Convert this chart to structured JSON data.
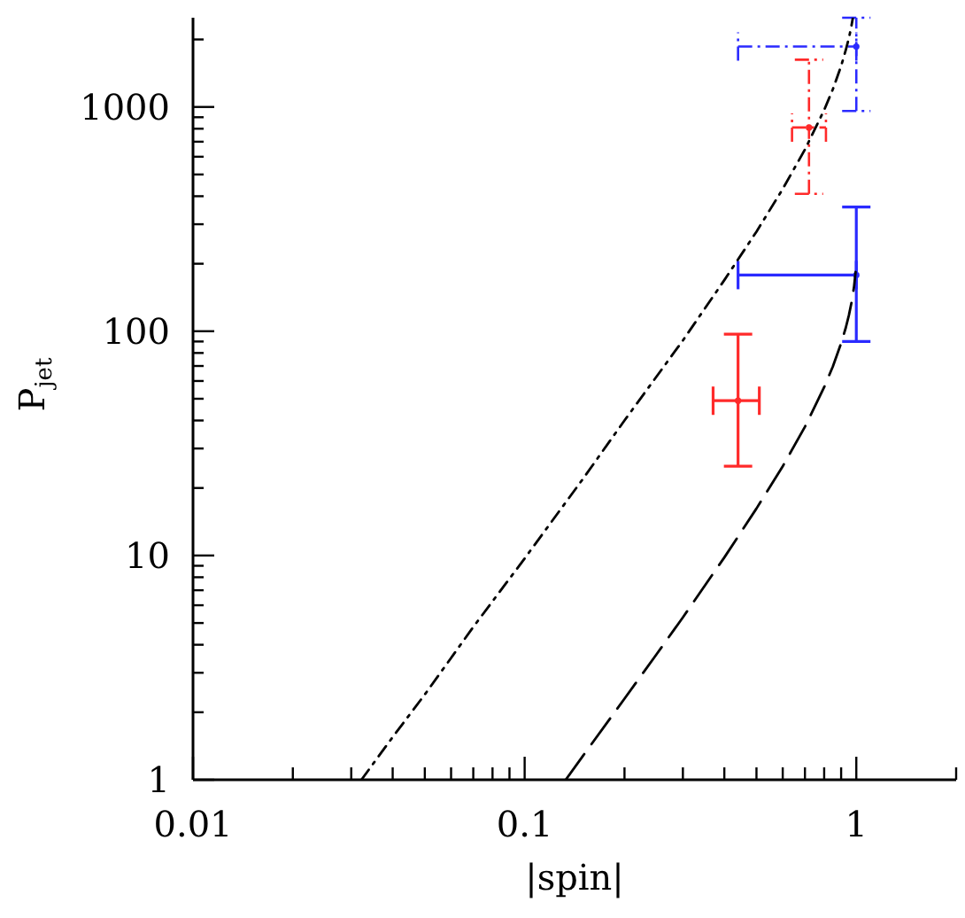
{
  "chart_data": {
    "type": "line",
    "xlabel": "|spin|",
    "ylabel": "P$_{jet}$",
    "log": "xy",
    "xlim": [
      0.01,
      2
    ],
    "ylim": [
      1,
      2500
    ],
    "xticks": [
      0.01,
      {
        "value": 0.02,
        "label": null
      },
      {
        "value": 0.03,
        "label": null
      },
      {
        "value": 0.04,
        "label": null
      },
      {
        "value": 0.05,
        "label": null
      },
      {
        "value": 0.06,
        "label": null
      },
      {
        "value": 0.07,
        "label": null
      },
      {
        "value": 0.08,
        "label": null
      },
      {
        "value": 0.09,
        "label": null
      },
      0.1,
      {
        "value": 0.2,
        "label": null
      },
      {
        "value": 0.3,
        "label": null
      },
      {
        "value": 0.4,
        "label": null
      },
      {
        "value": 0.5,
        "label": null
      },
      {
        "value": 0.6,
        "label": null
      },
      {
        "value": 0.7,
        "label": null
      },
      {
        "value": 0.8,
        "label": null
      },
      {
        "value": 0.9,
        "label": null
      },
      1,
      {
        "value": 2,
        "label": null
      }
    ],
    "yticks": [
      1,
      {
        "value": 2,
        "label": null
      },
      {
        "value": 3,
        "label": null
      },
      {
        "value": 4,
        "label": null
      },
      {
        "value": 5,
        "label": null
      },
      {
        "value": 6,
        "label": null
      },
      {
        "value": 7,
        "label": null
      },
      {
        "value": 8,
        "label": null
      },
      {
        "value": 9,
        "label": null
      },
      10,
      {
        "value": 20,
        "label": null
      },
      {
        "value": 30,
        "label": null
      },
      {
        "value": 40,
        "label": null
      },
      {
        "value": 50,
        "label": null
      },
      {
        "value": 60,
        "label": null
      },
      {
        "value": 70,
        "label": null
      },
      {
        "value": 80,
        "label": null
      },
      {
        "value": 90,
        "label": null
      },
      100,
      {
        "value": 200,
        "label": null
      },
      {
        "value": 300,
        "label": null
      },
      {
        "value": 400,
        "label": null
      },
      {
        "value": 500,
        "label": null
      },
      {
        "value": 600,
        "label": null
      },
      {
        "value": 700,
        "label": null
      },
      {
        "value": 800,
        "label": null
      },
      {
        "value": 900,
        "label": null
      },
      1000,
      {
        "value": 2000,
        "label": null
      }
    ],
    "series": [
      {
        "type": "line",
        "color": "#000000",
        "line_style": "dashdot",
        "x": [
          0.0322,
          0.04,
          0.05,
          0.07,
          0.1,
          0.15,
          0.2,
          0.3,
          0.4,
          0.5,
          0.6,
          0.7,
          0.8,
          0.85,
          0.9,
          0.93,
          0.95,
          0.965,
          0.976
        ],
        "values": [
          1.0,
          1.55,
          2.4,
          4.8,
          9.7,
          22,
          40,
          91,
          169,
          278,
          431,
          646,
          969,
          1201,
          1522,
          1798,
          2031,
          2265,
          2489
        ]
      },
      {
        "type": "line",
        "color": "#000000",
        "line_style": "dashed",
        "x": [
          0.133,
          0.15,
          0.2,
          0.25,
          0.3,
          0.4,
          0.5,
          0.6,
          0.7,
          0.8,
          0.85,
          0.9,
          0.93,
          0.95,
          0.97,
          0.985,
          0.995
        ],
        "values": [
          1.0,
          1.28,
          2.3,
          3.63,
          5.3,
          9.8,
          16.2,
          25,
          37.5,
          56.3,
          69.7,
          88.4,
          104,
          118,
          137,
          159,
          184
        ]
      },
      {
        "type": "scatter",
        "color": "#ff2a2a",
        "line_style": "solid",
        "x": [
          0.44
        ],
        "values": [
          49
        ],
        "errors": [
          [
            25,
            97
          ]
        ],
        "xerrors": [
          [
            0.37,
            0.51
          ]
        ]
      },
      {
        "type": "scatter",
        "color": "#ff2a2a",
        "line_style": "dashdot",
        "x": [
          0.72
        ],
        "values": [
          810
        ],
        "errors": [
          [
            410,
            1625
          ]
        ],
        "xerrors": [
          [
            0.64,
            0.81
          ]
        ]
      },
      {
        "type": "scatter",
        "color": "#2a2aff",
        "line_style": "solid",
        "x": [
          1
        ],
        "values": [
          178
        ],
        "errors": [
          [
            90,
            358
          ]
        ],
        "xerrors": [
          [
            0.44,
            1
          ]
        ]
      },
      {
        "type": "scatter",
        "color": "#2a2aff",
        "line_style": "dashdot",
        "x": [
          1
        ],
        "values": [
          1860
        ],
        "errors": [
          [
            960,
            2500
          ]
        ],
        "xerrors": [
          [
            0.44,
            1
          ]
        ]
      }
    ]
  }
}
